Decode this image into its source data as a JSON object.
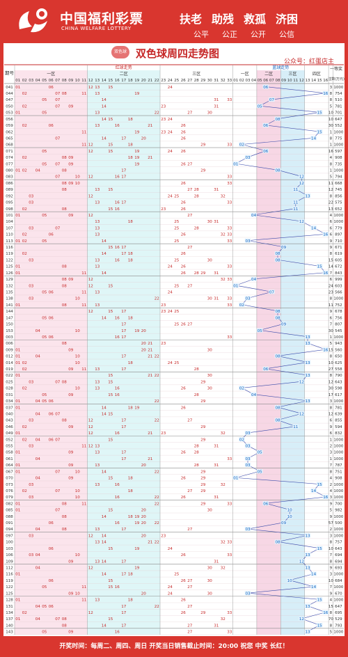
{
  "header": {
    "brand_cn": "中国福利彩票",
    "brand_en": "CHINA WELFARE LOTTERY",
    "slogan": [
      "扶老",
      "助残",
      "救孤",
      "济困"
    ],
    "principles": [
      "公平",
      "公正",
      "公开",
      "公信"
    ],
    "badge": "双色球"
  },
  "chart_data": {
    "type": "table",
    "title": "双色球周四走势图",
    "account": "公众号：红蛋店主",
    "group_headers": {
      "red": "红球走势",
      "blue": "蓝球走势"
    },
    "zones": {
      "red": [
        "一区",
        "二区",
        "三区"
      ],
      "blue": [
        "一区",
        "二区",
        "三区",
        "四区"
      ]
    },
    "column_labels": {
      "issue": "期号",
      "prize": "一等奖",
      "note": "注数(万元)"
    },
    "rows": [
      {
        "issue": "041",
        "red": [
          1,
          6,
          12,
          13,
          15,
          24
        ],
        "blue": 6,
        "count": 3,
        "amount": 1000
      },
      {
        "issue": "044",
        "red": [
          2,
          7,
          8,
          11,
          13,
          19
        ],
        "blue": 16,
        "count": 8,
        "amount": 754
      },
      {
        "issue": "047",
        "red": [
          5,
          7,
          14,
          31,
          33
        ],
        "blue": 7,
        "count": 8,
        "amount": 510
      },
      {
        "issue": "050",
        "red": [
          2,
          7,
          9,
          14,
          23,
          31
        ],
        "blue": 5,
        "count": 5,
        "amount": 781
      },
      {
        "issue": "053",
        "red": [
          1,
          5,
          13,
          22,
          27,
          30
        ],
        "blue": 15,
        "count": 10,
        "amount": 701
      },
      {
        "issue": "056",
        "red": [
          14,
          15,
          18,
          23,
          24
        ],
        "blue": 8,
        "count": 10,
        "amount": 647
      },
      {
        "issue": "059",
        "red": [
          2,
          6,
          13,
          16,
          21,
          26
        ],
        "blue": 6,
        "count": 30,
        "amount": 552
      },
      {
        "issue": "062",
        "red": [
          11,
          19,
          23,
          24,
          26
        ],
        "blue": 15,
        "count": 1,
        "amount": 1000
      },
      {
        "issue": "065",
        "red": [
          7,
          14,
          17,
          20,
          26
        ],
        "blue": 14,
        "count": 8,
        "amount": 775
      },
      {
        "issue": "068",
        "red": [
          11,
          12,
          15,
          18,
          29,
          33
        ],
        "blue": 2,
        "count": 1,
        "amount": 1000
      },
      {
        "issue": "071",
        "red": [
          5,
          12,
          15,
          19,
          24,
          26
        ],
        "blue": 6,
        "count": 16,
        "amount": 597
      },
      {
        "issue": "074",
        "red": [
          2,
          8,
          9,
          18,
          19,
          21
        ],
        "blue": 3,
        "count": 4,
        "amount": 908
      },
      {
        "issue": "077",
        "red": [
          5,
          7,
          9,
          19,
          26,
          27
        ],
        "blue": 1,
        "count": 8,
        "amount": 735
      },
      {
        "issue": "080",
        "red": [
          1,
          2,
          4,
          8,
          17,
          29
        ],
        "blue": 8,
        "count": 1,
        "amount": 1000
      },
      {
        "issue": "083",
        "red": [
          7,
          10,
          12,
          16,
          17,
          33
        ],
        "blue": 12,
        "count": 5,
        "amount": 794
      },
      {
        "issue": "086",
        "red": [
          8,
          9,
          10,
          26,
          33
        ],
        "blue": 12,
        "count": 11,
        "amount": 668
      },
      {
        "issue": "089",
        "red": [
          8,
          13,
          15,
          27,
          28,
          31
        ],
        "blue": 11,
        "count": 12,
        "amount": 745
      },
      {
        "issue": "092",
        "red": [
          3,
          12,
          24,
          25,
          28,
          32
        ],
        "blue": 13,
        "count": 8,
        "amount": 856
      },
      {
        "issue": "095",
        "red": [
          3,
          13,
          16,
          17,
          26,
          33
        ],
        "blue": 11,
        "count": 22,
        "amount": 575
      },
      {
        "issue": "098",
        "red": [
          2,
          8,
          15,
          16,
          23,
          26
        ],
        "blue": 11,
        "count": 13,
        "amount": 652
      },
      {
        "issue": "101",
        "red": [
          1,
          5,
          9,
          12,
          27
        ],
        "blue": 4,
        "count": 4,
        "amount": 1000
      },
      {
        "issue": "104",
        "red": [
          13,
          18,
          25,
          30,
          31
        ],
        "blue": 12,
        "count": 6,
        "amount": 1000
      },
      {
        "issue": "107",
        "red": [
          3,
          7,
          13,
          25,
          28,
          33
        ],
        "blue": 14,
        "count": 6,
        "amount": 779
      },
      {
        "issue": "110",
        "red": [
          2,
          6,
          13,
          26,
          32,
          33
        ],
        "blue": 16,
        "count": 6,
        "amount": 897
      },
      {
        "issue": "113",
        "red": [
          1,
          2,
          5,
          14,
          25,
          33
        ],
        "blue": 3,
        "count": 9,
        "amount": 710
      },
      {
        "issue": "116",
        "red": [
          15,
          16,
          17,
          27
        ],
        "blue": 9,
        "count": 9,
        "amount": 671
      },
      {
        "issue": "119",
        "red": [
          2,
          14,
          17,
          18,
          26
        ],
        "blue": 8,
        "count": 8,
        "amount": 619
      },
      {
        "issue": "122",
        "red": [
          3,
          13,
          16,
          18,
          25,
          30
        ],
        "blue": 8,
        "count": 15,
        "amount": 605
      },
      {
        "issue": "125",
        "red": [
          1,
          8,
          13,
          24,
          26,
          33
        ],
        "blue": 15,
        "count": 14,
        "amount": 672
      },
      {
        "issue": "126",
        "red": [
          1,
          11,
          14,
          26,
          28,
          29,
          31
        ],
        "blue": 16,
        "count": 7,
        "amount": 843
      },
      {
        "issue": "129",
        "red": [
          8,
          9,
          12,
          32,
          33
        ],
        "blue": 4,
        "count": 6,
        "amount": 999
      },
      {
        "issue": "132",
        "red": [
          3,
          8,
          12,
          15,
          25,
          27
        ],
        "blue": 1,
        "count": 24,
        "amount": 603
      },
      {
        "issue": "135",
        "red": [
          5,
          6,
          11,
          13,
          24
        ],
        "blue": 7,
        "count": 23,
        "amount": 566
      },
      {
        "issue": "138",
        "red": [
          3,
          10,
          22,
          30,
          31,
          33
        ],
        "blue": 3,
        "count": 8,
        "amount": 1000
      },
      {
        "issue": "141",
        "red": [
          1,
          8,
          11,
          13,
          23,
          33
        ],
        "blue": 2,
        "count": 11,
        "amount": 752
      },
      {
        "issue": "144",
        "red": [
          12,
          15,
          17,
          23,
          24,
          25
        ],
        "blue": 8,
        "count": 9,
        "amount": 678
      },
      {
        "issue": "147",
        "red": [
          5,
          6,
          14,
          16,
          18
        ],
        "blue": 8,
        "count": 6,
        "amount": 756
      },
      {
        "issue": "150",
        "red": [
          17,
          25,
          26,
          27
        ],
        "blue": 9,
        "count": 7,
        "amount": 807
      },
      {
        "issue": "153",
        "red": [
          4,
          10,
          17,
          19,
          20
        ],
        "blue": 5,
        "count": 30,
        "amount": 545
      },
      {
        "issue": "003",
        "red": [
          5,
          6,
          16,
          17,
          33
        ],
        "blue": 13,
        "count": 1,
        "amount": 1000
      },
      {
        "issue": "006",
        "red": [
          8,
          20,
          21,
          23
        ],
        "blue": 13,
        "count": 5,
        "amount": 943
      },
      {
        "issue": "009",
        "red": [
          1,
          9,
          20,
          21,
          30
        ],
        "blue": 16,
        "count": 15,
        "amount": 560
      },
      {
        "issue": "012",
        "red": [
          1,
          4,
          10,
          17,
          21,
          22
        ],
        "blue": 8,
        "count": 8,
        "amount": 650
      },
      {
        "issue": "014",
        "red": [
          1,
          2,
          10,
          18,
          24,
          25
        ],
        "blue": 13,
        "count": 10,
        "amount": 625
      },
      {
        "issue": "019",
        "red": [
          2,
          9,
          11,
          13,
          17,
          28
        ],
        "blue": 6,
        "count": 27,
        "amount": 558
      },
      {
        "issue": "022",
        "red": [
          1,
          15,
          21,
          22,
          30
        ],
        "blue": 13,
        "count": 8,
        "amount": 790
      },
      {
        "issue": "025",
        "red": [
          3,
          7,
          8,
          13,
          15,
          29
        ],
        "blue": 12,
        "count": 12,
        "amount": 643
      },
      {
        "issue": "028",
        "red": [
          2,
          10,
          13,
          16,
          26,
          30
        ],
        "blue": 2,
        "count": 30,
        "amount": 598
      },
      {
        "issue": "031",
        "red": [
          5,
          9,
          15,
          16,
          28
        ],
        "blue": 4,
        "count": 17,
        "amount": 617
      },
      {
        "issue": "034",
        "red": [
          1,
          4,
          5,
          6,
          22,
          29
        ],
        "blue": 13,
        "count": 3,
        "amount": 1000
      },
      {
        "issue": "037",
        "red": [
          1,
          14,
          18,
          19,
          26
        ],
        "blue": 8,
        "count": 8,
        "amount": 781
      },
      {
        "issue": "040",
        "red": [
          4,
          6,
          7,
          14,
          15
        ],
        "blue": 12,
        "count": 12,
        "amount": 639
      },
      {
        "issue": "043",
        "red": [
          3,
          8,
          12,
          17,
          22,
          27
        ],
        "blue": 8,
        "count": 6,
        "amount": 855
      },
      {
        "issue": "046",
        "red": [
          2,
          9,
          12,
          17,
          29
        ],
        "blue": 11,
        "count": 9,
        "amount": 594
      },
      {
        "issue": "049",
        "red": [
          1,
          12,
          16,
          21,
          23,
          32
        ],
        "blue": 3,
        "count": 6,
        "amount": 832
      },
      {
        "issue": "052",
        "red": [
          2,
          4,
          6,
          7,
          15,
          29
        ],
        "blue": 2,
        "count": 1,
        "amount": 1000
      },
      {
        "issue": "055",
        "red": [
          3,
          11,
          12,
          13,
          28,
          31
        ],
        "blue": 3,
        "count": 2,
        "amount": 1000
      },
      {
        "issue": "058",
        "red": [
          1,
          9,
          13,
          17,
          26,
          28
        ],
        "blue": 5,
        "count": 3,
        "amount": 1000
      },
      {
        "issue": "061",
        "red": [
          4,
          17,
          21,
          33
        ],
        "blue": 3,
        "count": 1,
        "amount": 1000
      },
      {
        "issue": "064",
        "red": [
          1,
          9,
          13,
          20,
          28,
          31
        ],
        "blue": 3,
        "count": 7,
        "amount": 787
      },
      {
        "issue": "067",
        "red": [
          1,
          7,
          10,
          14,
          22,
          29
        ],
        "blue": 5,
        "count": 8,
        "amount": 751
      },
      {
        "issue": "070",
        "red": [
          4,
          9,
          15,
          18,
          26,
          29
        ],
        "blue": 1,
        "count": 4,
        "amount": 908
      },
      {
        "issue": "073",
        "red": [
          3,
          13,
          16,
          29,
          32
        ],
        "blue": 15,
        "count": 2,
        "amount": 1000
      },
      {
        "issue": "076",
        "red": [
          2,
          7,
          10,
          18,
          27,
          29
        ],
        "blue": 14,
        "count": 4,
        "amount": 1000
      },
      {
        "issue": "079",
        "red": [
          3,
          10,
          16,
          22,
          26,
          31
        ],
        "blue": 16,
        "count": 3,
        "amount": 1000
      },
      {
        "issue": "082",
        "red": [
          1,
          8,
          11,
          22,
          29,
          33
        ],
        "blue": 6,
        "count": 9,
        "amount": 700
      },
      {
        "issue": "085",
        "red": [
          1,
          7,
          15,
          20,
          30
        ],
        "blue": 10,
        "count": 5,
        "amount": 982
      },
      {
        "issue": "088",
        "red": [
          8,
          14,
          18,
          19,
          20
        ],
        "blue": 10,
        "count": 9,
        "amount": 1000
      },
      {
        "issue": "091",
        "red": [
          6,
          16,
          19,
          20,
          22
        ],
        "blue": 9,
        "count": 57,
        "amount": 500
      },
      {
        "issue": "094",
        "red": [
          4,
          8,
          13,
          17,
          27
        ],
        "blue": 3,
        "count": 2,
        "amount": 1000
      },
      {
        "issue": "097",
        "red": [
          3,
          12,
          14,
          20,
          23
        ],
        "blue": 13,
        "count": 3,
        "amount": 1000
      },
      {
        "issue": "100",
        "red": [
          13,
          14,
          21,
          22,
          32,
          33
        ],
        "blue": 8,
        "count": 8,
        "amount": 757
      },
      {
        "issue": "103",
        "red": [
          6,
          15,
          19,
          24
        ],
        "blue": 15,
        "count": 10,
        "amount": 643
      },
      {
        "issue": "106",
        "red": [
          3,
          4,
          10,
          26,
          33
        ],
        "blue": 13,
        "count": 7,
        "amount": 694
      },
      {
        "issue": "109",
        "red": [
          9,
          13,
          14,
          17,
          31
        ],
        "blue": 12,
        "count": 8,
        "amount": 694
      },
      {
        "issue": "112",
        "red": [
          4,
          12,
          19,
          30,
          32
        ],
        "blue": 13,
        "count": 9,
        "amount": 693
      },
      {
        "issue": "116",
        "red": [
          1,
          14,
          17,
          18,
          25
        ],
        "blue": 14,
        "count": 3,
        "amount": 1000
      },
      {
        "issue": "119",
        "red": [
          6,
          15,
          26,
          27,
          30
        ],
        "blue": 10,
        "count": 10,
        "amount": 684
      },
      {
        "issue": "122",
        "red": [
          5,
          11,
          15,
          16,
          24,
          27
        ],
        "blue": 14,
        "count": 7,
        "amount": 1000
      },
      {
        "issue": "125",
        "red": [
          9,
          10,
          20,
          24,
          30
        ],
        "blue": 3,
        "count": 9,
        "amount": 670
      },
      {
        "issue": "128",
        "red": [
          1,
          11,
          13,
          18,
          26
        ],
        "blue": 15,
        "count": 4,
        "amount": 1000
      },
      {
        "issue": "131",
        "red": [
          4,
          5,
          6,
          17,
          22,
          27
        ],
        "blue": 13,
        "count": 15,
        "amount": 647
      },
      {
        "issue": "134",
        "red": [
          2,
          12,
          17,
          26,
          29,
          33
        ],
        "blue": 16,
        "count": 8,
        "amount": 695
      },
      {
        "issue": "137",
        "red": [
          1,
          4,
          7,
          8,
          15,
          32
        ],
        "blue": 12,
        "count": 70,
        "amount": 529
      },
      {
        "issue": "140",
        "red": [
          8,
          14,
          17,
          27,
          31
        ],
        "blue": 15,
        "count": 8,
        "amount": 793
      },
      {
        "issue": "143",
        "red": [
          5,
          9,
          16,
          27,
          33
        ],
        "blue": 13,
        "count": 5,
        "amount": 1000
      }
    ]
  },
  "footer": {
    "text": "开奖时间：每周二、周四、周日  开奖当日销售截止时间：20:00  祝您 中奖 长红！"
  }
}
